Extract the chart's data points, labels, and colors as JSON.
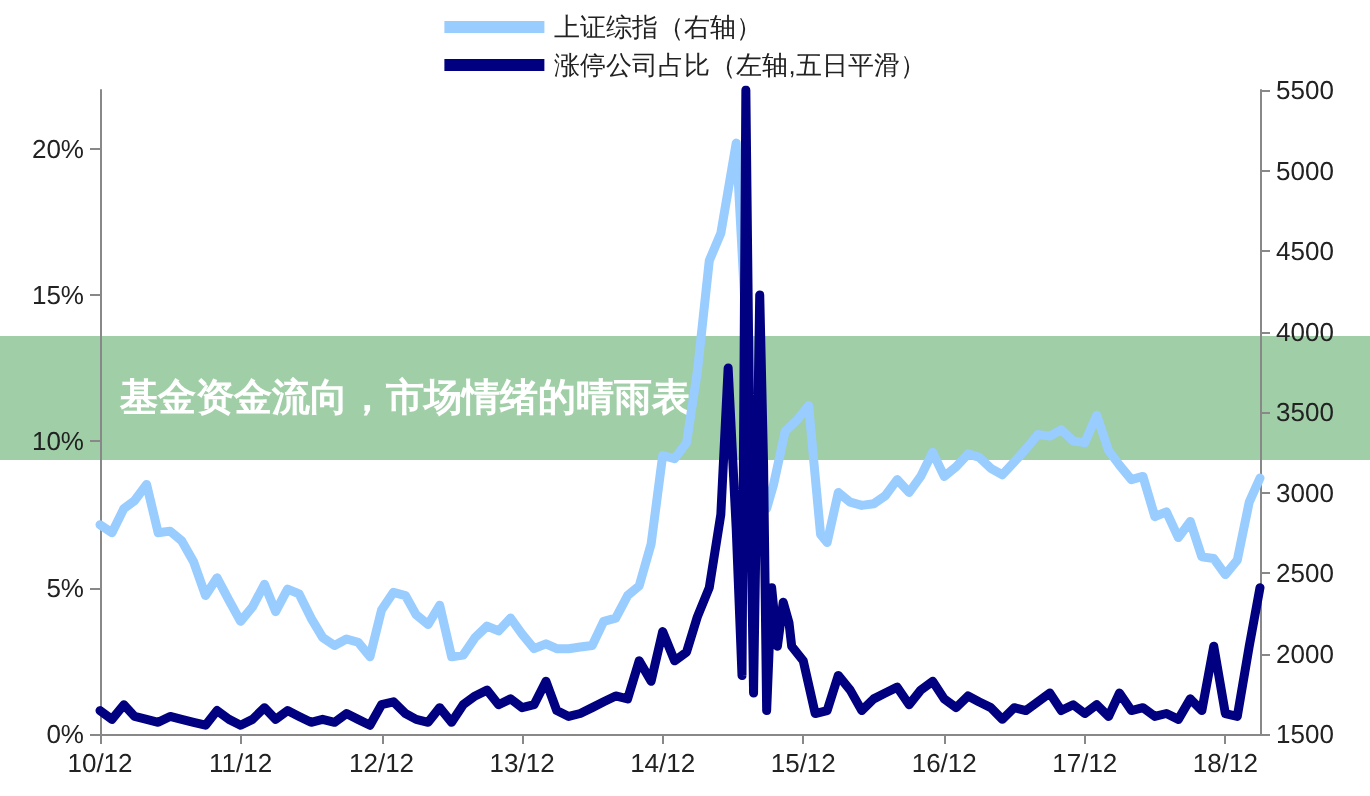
{
  "chart_data": {
    "type": "line",
    "title": "基金资金流向，市场情绪的晴雨表",
    "xlim": [
      "2010-12",
      "2019-03"
    ],
    "xticks": [
      {
        "value": "2010-12",
        "label": "10/12"
      },
      {
        "value": "2011-12",
        "label": "11/12"
      },
      {
        "value": "2012-12",
        "label": "12/12"
      },
      {
        "value": "2013-12",
        "label": "13/12"
      },
      {
        "value": "2014-12",
        "label": "14/12"
      },
      {
        "value": "2015-12",
        "label": "15/12"
      },
      {
        "value": "2016-12",
        "label": "16/12"
      },
      {
        "value": "2017-12",
        "label": "17/12"
      },
      {
        "value": "2018-12",
        "label": "18/12"
      }
    ],
    "ylim": [
      0,
      22
    ],
    "yticks": [
      {
        "value": 0,
        "label": "0%"
      },
      {
        "value": 5,
        "label": "5%"
      },
      {
        "value": 10,
        "label": "10%"
      },
      {
        "value": 15,
        "label": "15%"
      },
      {
        "value": 20,
        "label": "20%"
      }
    ],
    "y2lim": [
      1500,
      5500
    ],
    "y2ticks": [
      1500,
      2000,
      2500,
      3000,
      3500,
      4000,
      4500,
      5000,
      5500
    ],
    "legend": "top",
    "grid": false,
    "marker": "none",
    "line_style": "solid",
    "series": [
      {
        "name": "上证综指（右轴）",
        "color": "#99ccff",
        "axis": "y2",
        "x": [
          "2010-12",
          "2011-01",
          "2011-02",
          "2011-03",
          "2011-04",
          "2011-05",
          "2011-06",
          "2011-07",
          "2011-08",
          "2011-09",
          "2011-10",
          "2011-11",
          "2011-12",
          "2012-01",
          "2012-02",
          "2012-03",
          "2012-04",
          "2012-05",
          "2012-06",
          "2012-07",
          "2012-08",
          "2012-09",
          "2012-10",
          "2012-11",
          "2012-12",
          "2013-01",
          "2013-02",
          "2013-03",
          "2013-04",
          "2013-05",
          "2013-06",
          "2013-07",
          "2013-08",
          "2013-09",
          "2013-10",
          "2013-11",
          "2013-12",
          "2014-01",
          "2014-02",
          "2014-03",
          "2014-04",
          "2014-05",
          "2014-06",
          "2014-07",
          "2014-08",
          "2014-09",
          "2014-10",
          "2014-11",
          "2014-12",
          "2015-01",
          "2015-02",
          "2015-03",
          "2015-04",
          "2015-05",
          "2015-06-10",
          "2015-06-30",
          "2015-07-15",
          "2015-08-10",
          "2015-08-28",
          "2015-09-15",
          "2015-10-15",
          "2015-11-15",
          "2015-12-15",
          "2016-01-15",
          "2016-02",
          "2016-03",
          "2016-04",
          "2016-05",
          "2016-06",
          "2016-07",
          "2016-08",
          "2016-09",
          "2016-10",
          "2016-11",
          "2016-12",
          "2017-01",
          "2017-02",
          "2017-03",
          "2017-04",
          "2017-05",
          "2017-06",
          "2017-07",
          "2017-08",
          "2017-09",
          "2017-10",
          "2017-11",
          "2017-12",
          "2018-01",
          "2018-02",
          "2018-03",
          "2018-04",
          "2018-05",
          "2018-06",
          "2018-07",
          "2018-08",
          "2018-09",
          "2018-10",
          "2018-11",
          "2018-12",
          "2019-01",
          "2019-02",
          "2019-03"
        ],
        "values": [
          2800,
          2750,
          2900,
          2950,
          3050,
          2750,
          2760,
          2700,
          2570,
          2360,
          2470,
          2330,
          2200,
          2290,
          2430,
          2260,
          2400,
          2370,
          2220,
          2100,
          2050,
          2090,
          2070,
          1980,
          2270,
          2380,
          2360,
          2240,
          2180,
          2300,
          1980,
          1990,
          2100,
          2170,
          2140,
          2220,
          2120,
          2030,
          2060,
          2030,
          2030,
          2040,
          2050,
          2200,
          2220,
          2360,
          2420,
          2680,
          3230,
          3210,
          3310,
          3750,
          4440,
          4610,
          5170,
          4280,
          3660,
          3200,
          2900,
          3050,
          3380,
          3450,
          3540,
          2740,
          2690,
          3000,
          2940,
          2920,
          2930,
          2980,
          3080,
          3000,
          3100,
          3250,
          3100,
          3160,
          3240,
          3220,
          3150,
          3110,
          3190,
          3270,
          3360,
          3350,
          3390,
          3320,
          3310,
          3480,
          3260,
          3170,
          3080,
          3100,
          2850,
          2880,
          2720,
          2820,
          2600,
          2590,
          2490,
          2580,
          2940,
          3090
        ]
      },
      {
        "name": "涨停公司占比（左轴,五日平滑）",
        "color": "#000080",
        "x": [
          "2010-12",
          "2011-01",
          "2011-02",
          "2011-03",
          "2011-04",
          "2011-05",
          "2011-06",
          "2011-07",
          "2011-08",
          "2011-09",
          "2011-10",
          "2011-11",
          "2011-12",
          "2012-01",
          "2012-02",
          "2012-03",
          "2012-04",
          "2012-05",
          "2012-06",
          "2012-07",
          "2012-08",
          "2012-09",
          "2012-10",
          "2012-11",
          "2012-12",
          "2013-01",
          "2013-02",
          "2013-03",
          "2013-04",
          "2013-05",
          "2013-06",
          "2013-07",
          "2013-08",
          "2013-09",
          "2013-10",
          "2013-11",
          "2013-12",
          "2014-01",
          "2014-02",
          "2014-03",
          "2014-04",
          "2014-05",
          "2014-06",
          "2014-07",
          "2014-08",
          "2014-09",
          "2014-10",
          "2014-11",
          "2014-12",
          "2015-01",
          "2015-02",
          "2015-03",
          "2015-04",
          "2015-05-01",
          "2015-05-20",
          "2015-06-10",
          "2015-06-25",
          "2015-07-05",
          "2015-07-15",
          "2015-07-25",
          "2015-08-10",
          "2015-08-20",
          "2015-08-28",
          "2015-09-10",
          "2015-09-25",
          "2015-10-10",
          "2015-10-25",
          "2015-11",
          "2015-12",
          "2016-01",
          "2016-02",
          "2016-03",
          "2016-04",
          "2016-05",
          "2016-06",
          "2016-07",
          "2016-08",
          "2016-09",
          "2016-10",
          "2016-11",
          "2016-12",
          "2017-01",
          "2017-02",
          "2017-03",
          "2017-04",
          "2017-05",
          "2017-06",
          "2017-07",
          "2017-08",
          "2017-09",
          "2017-10",
          "2017-11",
          "2017-12",
          "2018-01",
          "2018-02",
          "2018-03",
          "2018-04",
          "2018-05",
          "2018-06",
          "2018-07",
          "2018-08",
          "2018-09",
          "2018-10",
          "2018-11",
          "2018-12",
          "2019-01",
          "2019-02",
          "2019-03"
        ],
        "values": [
          0.8,
          0.5,
          1.0,
          0.6,
          0.5,
          0.4,
          0.6,
          0.5,
          0.4,
          0.3,
          0.8,
          0.5,
          0.3,
          0.5,
          0.9,
          0.5,
          0.8,
          0.6,
          0.4,
          0.5,
          0.4,
          0.7,
          0.5,
          0.3,
          1.0,
          1.1,
          0.7,
          0.5,
          0.4,
          0.9,
          0.4,
          1.0,
          1.3,
          1.5,
          1.0,
          1.2,
          0.9,
          1.0,
          1.8,
          0.8,
          0.6,
          0.7,
          0.9,
          1.1,
          1.3,
          1.2,
          2.5,
          1.8,
          3.5,
          2.5,
          2.8,
          4.0,
          5.0,
          7.5,
          12.5,
          7.0,
          2.0,
          22,
          10,
          1.4,
          15,
          9.2,
          0.8,
          5.0,
          3.0,
          4.5,
          3.8,
          3.0,
          2.5,
          0.7,
          0.8,
          2.0,
          1.5,
          0.8,
          1.2,
          1.4,
          1.6,
          1.0,
          1.5,
          1.8,
          1.2,
          0.9,
          1.3,
          1.1,
          0.9,
          0.5,
          0.9,
          0.8,
          1.1,
          1.4,
          0.8,
          1.0,
          0.7,
          1.0,
          0.6,
          1.4,
          0.8,
          0.9,
          0.6,
          0.7,
          0.5,
          1.2,
          0.8,
          3.0,
          0.7,
          0.6,
          3.0,
          5.0
        ]
      }
    ]
  }
}
